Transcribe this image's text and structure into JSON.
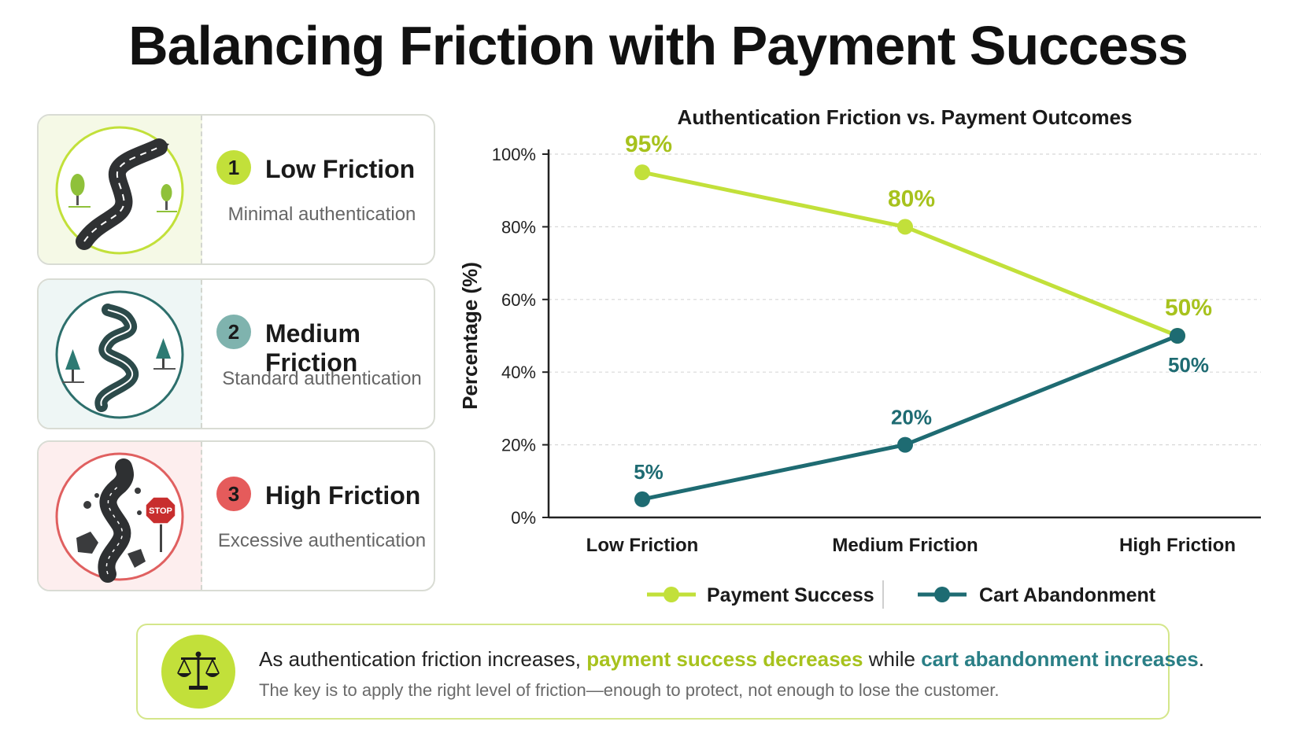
{
  "page": {
    "title": "Balancing Friction with Payment Success"
  },
  "cards": [
    {
      "number": "1",
      "name": "Low Friction",
      "description": "Minimal authentication",
      "accent": "#c2e03a",
      "tint": "#f5f9e6",
      "icon": "winding-road-icon"
    },
    {
      "number": "2",
      "name": "Medium Friction",
      "description": "Standard authentication",
      "accent": "#7fb3ae",
      "tint": "#eef6f5",
      "icon": "curvy-road-icon"
    },
    {
      "number": "3",
      "name": "High Friction",
      "description": "Excessive authentication",
      "accent": "#e55b5b",
      "tint": "#fdeeee",
      "icon": "blocked-road-icon",
      "sign_text": "STOP"
    }
  ],
  "colors": {
    "payment_success": "#c2e03a",
    "cart_abandonment": "#1e6b72",
    "payment_success_label": "#a7c21d",
    "cart_abandonment_label": "#1e6b72"
  },
  "chart_data": {
    "type": "line",
    "title": "Authentication Friction vs. Payment Outcomes",
    "xlabel": "",
    "ylabel": "Percentage (%)",
    "categories": [
      "Low Friction",
      "Medium Friction",
      "High Friction"
    ],
    "ylim": [
      0,
      100
    ],
    "yticks": [
      0,
      20,
      40,
      60,
      80,
      100
    ],
    "ytick_labels": [
      "0%",
      "20%",
      "40%",
      "60%",
      "80%",
      "100%"
    ],
    "grid": true,
    "legend_position": "bottom",
    "series": [
      {
        "name": "Payment Success",
        "values": [
          95,
          80,
          50
        ],
        "labels": [
          "95%",
          "80%",
          "50%"
        ]
      },
      {
        "name": "Cart Abandonment",
        "values": [
          5,
          20,
          50
        ],
        "labels": [
          "5%",
          "20%",
          "50%"
        ]
      }
    ]
  },
  "callout": {
    "icon": "scale-icon",
    "line1_prefix": "As authentication friction increases,",
    "line1_highlight1": "payment success decreases",
    "line1_middle": "while",
    "line1_highlight2": "cart abandonment increases",
    "line1_suffix": ".",
    "line2": "The key is to apply the right level of friction—enough to protect, not enough to lose the customer."
  }
}
